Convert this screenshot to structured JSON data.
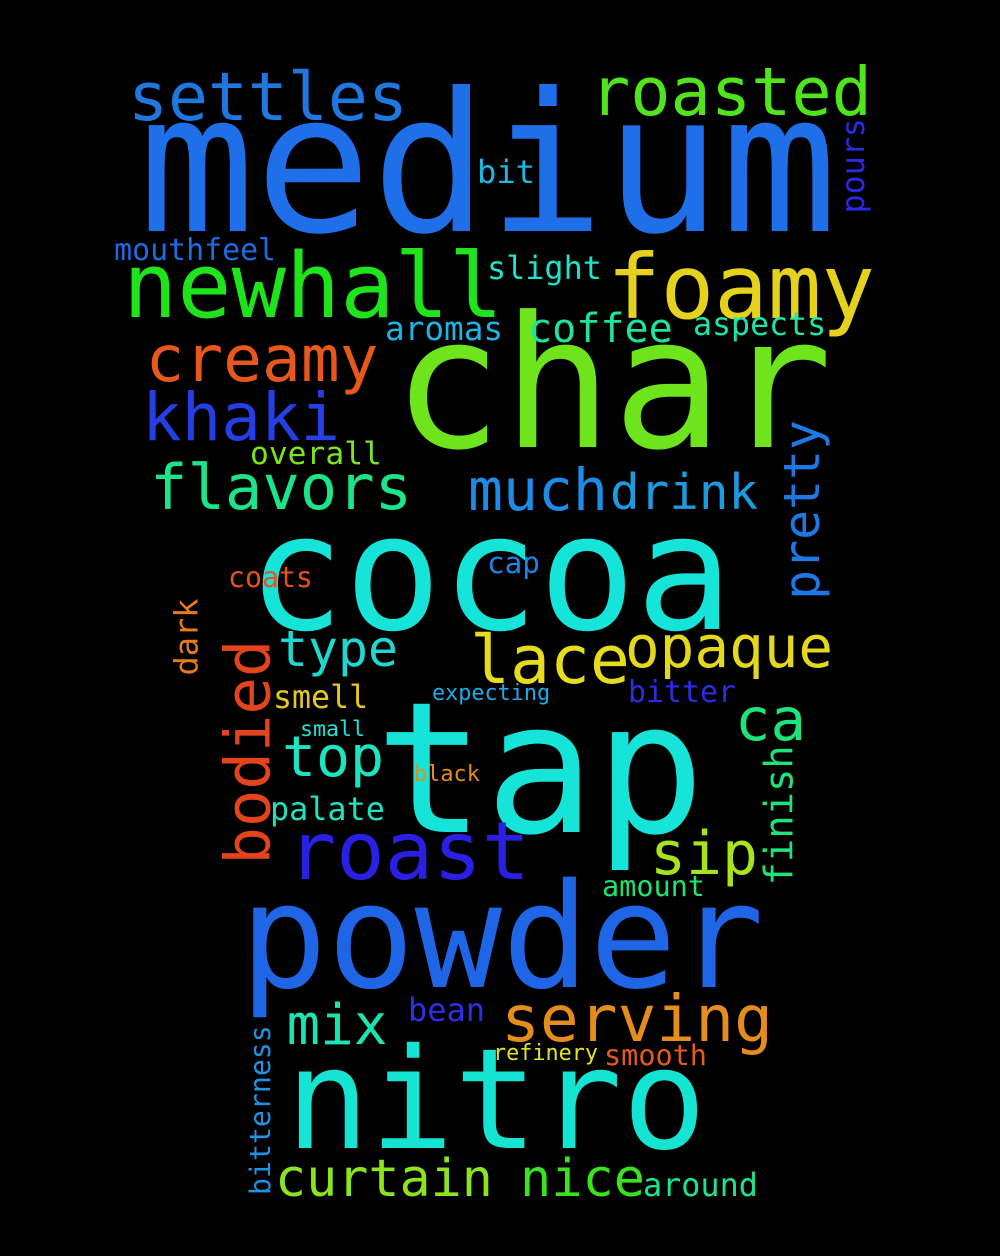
{
  "background": "#000000",
  "words": [
    {
      "text": "medium",
      "color": "#1f70e8"
    },
    {
      "text": "char",
      "color": "#6de41c"
    },
    {
      "text": "cocoa",
      "color": "#16e4d8"
    },
    {
      "text": "tap",
      "color": "#16e4d8"
    },
    {
      "text": "powder",
      "color": "#1f66e6"
    },
    {
      "text": "nitro",
      "color": "#16e4d2"
    },
    {
      "text": "newhall",
      "color": "#1fe41c"
    },
    {
      "text": "foamy",
      "color": "#e4d21c"
    },
    {
      "text": "settles",
      "color": "#1f78e0"
    },
    {
      "text": "roasted",
      "color": "#4fe41c"
    },
    {
      "text": "creamy",
      "color": "#e8581c"
    },
    {
      "text": "khaki",
      "color": "#2440e4"
    },
    {
      "text": "flavors",
      "color": "#1ce48a"
    },
    {
      "text": "much",
      "color": "#1c8ce8"
    },
    {
      "text": "drink",
      "color": "#1c9ce0"
    },
    {
      "text": "pretty",
      "color": "#1c78e4"
    },
    {
      "text": "lace",
      "color": "#e4dc1c"
    },
    {
      "text": "opaque",
      "color": "#e4d81c"
    },
    {
      "text": "type",
      "color": "#1cd8d0"
    },
    {
      "text": "bodied",
      "color": "#e4441c"
    },
    {
      "text": "roast",
      "color": "#2a20e4"
    },
    {
      "text": "sip",
      "color": "#a8e41c"
    },
    {
      "text": "ca",
      "color": "#1ce47c"
    },
    {
      "text": "top",
      "color": "#1ce4c0"
    },
    {
      "text": "serving",
      "color": "#e48c1c"
    },
    {
      "text": "mix",
      "color": "#1ce4b0"
    },
    {
      "text": "curtain",
      "color": "#8ce41c"
    },
    {
      "text": "nice",
      "color": "#38e41c"
    },
    {
      "text": "finish",
      "color": "#1ce47c"
    },
    {
      "text": "coffee",
      "color": "#1ce49c"
    },
    {
      "text": "aspects",
      "color": "#1ce4a8"
    },
    {
      "text": "aromas",
      "color": "#1cb4e4"
    },
    {
      "text": "slight",
      "color": "#1ce4c8"
    },
    {
      "text": "bit",
      "color": "#1cb8e4"
    },
    {
      "text": "mouthfeel",
      "color": "#1c6ce4"
    },
    {
      "text": "pours",
      "color": "#2c28e4"
    },
    {
      "text": "overall",
      "color": "#7ce41c"
    },
    {
      "text": "coats",
      "color": "#e8501c"
    },
    {
      "text": "cap",
      "color": "#1c84e4"
    },
    {
      "text": "dark",
      "color": "#e47c1c"
    },
    {
      "text": "smell",
      "color": "#e4c81c"
    },
    {
      "text": "expecting",
      "color": "#1cace4"
    },
    {
      "text": "bitter",
      "color": "#2c2ce4"
    },
    {
      "text": "small",
      "color": "#1ce4d8"
    },
    {
      "text": "black",
      "color": "#e48c1c"
    },
    {
      "text": "palate",
      "color": "#1ce4c0"
    },
    {
      "text": "amount",
      "color": "#1ce46c"
    },
    {
      "text": "bean",
      "color": "#2c30e4"
    },
    {
      "text": "refinery",
      "color": "#e4e41c"
    },
    {
      "text": "smooth",
      "color": "#e45c1c"
    },
    {
      "text": "bitterness",
      "color": "#1c94e4"
    },
    {
      "text": "around",
      "color": "#1ce48c"
    }
  ]
}
